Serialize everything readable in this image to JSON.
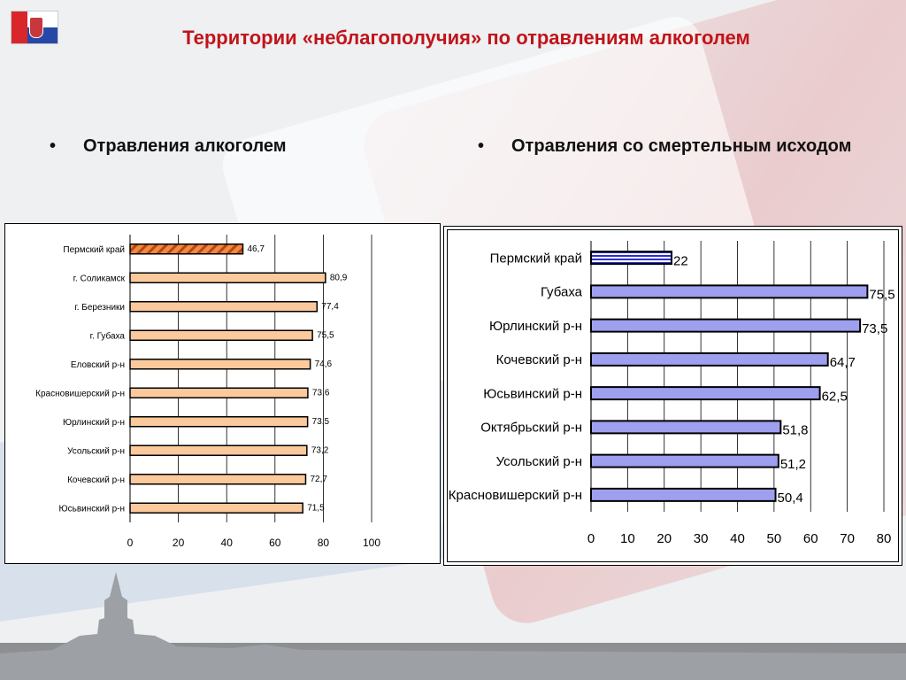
{
  "header": {
    "title": "Территории «неблагополучия» по отравлениям алкоголем"
  },
  "bullets": {
    "left": "Отравления алкоголем",
    "right": "Отравления со смертельным исходом"
  },
  "colors": {
    "title": "#c0141a",
    "left_bar": "#fbc99b",
    "left_bar_highlight": "#f28a3c",
    "right_bar": "#9f9ff0",
    "bar_border": "#000000"
  },
  "icons": [
    "perm-flag-logo-icon"
  ],
  "chart_data": [
    {
      "type": "bar",
      "orientation": "horizontal",
      "categories": [
        "Пермский  край",
        "г. Соликамск",
        "г. Березники",
        "г. Губаха",
        "Еловский р-н",
        "Красновишерский р-н",
        "Юрлинский р-н",
        "Усольский р-н",
        "Кочевский р-н",
        "Юсьвинский р-н"
      ],
      "values": [
        46.7,
        80.9,
        77.4,
        75.5,
        74.6,
        73.6,
        73.5,
        73.2,
        72.7,
        71.5
      ],
      "value_labels": [
        "46,7",
        "80,9",
        "77,4",
        "75,5",
        "74,6",
        "73,6",
        "73,5",
        "73,2",
        "72,7",
        "71,5"
      ],
      "highlight_index": 0,
      "xlim": [
        0,
        100
      ],
      "xticks": [
        "0",
        "20",
        "40",
        "60",
        "80",
        "100"
      ],
      "grid": true,
      "title": "",
      "xlabel": "",
      "ylabel": ""
    },
    {
      "type": "bar",
      "orientation": "horizontal",
      "categories": [
        "Пермский край",
        "Губаха",
        "Юрлинский р-н",
        "Кочевский р-н",
        "Юсьвинский р-н",
        "Октябрьский р-н",
        "Усольский р-н",
        "Красновишерский р-н"
      ],
      "values": [
        22,
        75.5,
        73.5,
        64.7,
        62.5,
        51.8,
        51.2,
        50.4
      ],
      "value_labels": [
        "22",
        "75,5",
        "73,5",
        "64,7",
        "62,5",
        "51,8",
        "51,2",
        "50,4"
      ],
      "highlight_index": 0,
      "xlim": [
        0,
        80
      ],
      "xticks": [
        "0",
        "10",
        "20",
        "30",
        "40",
        "50",
        "60",
        "70",
        "80"
      ],
      "grid": true,
      "title": "",
      "xlabel": "",
      "ylabel": ""
    }
  ]
}
